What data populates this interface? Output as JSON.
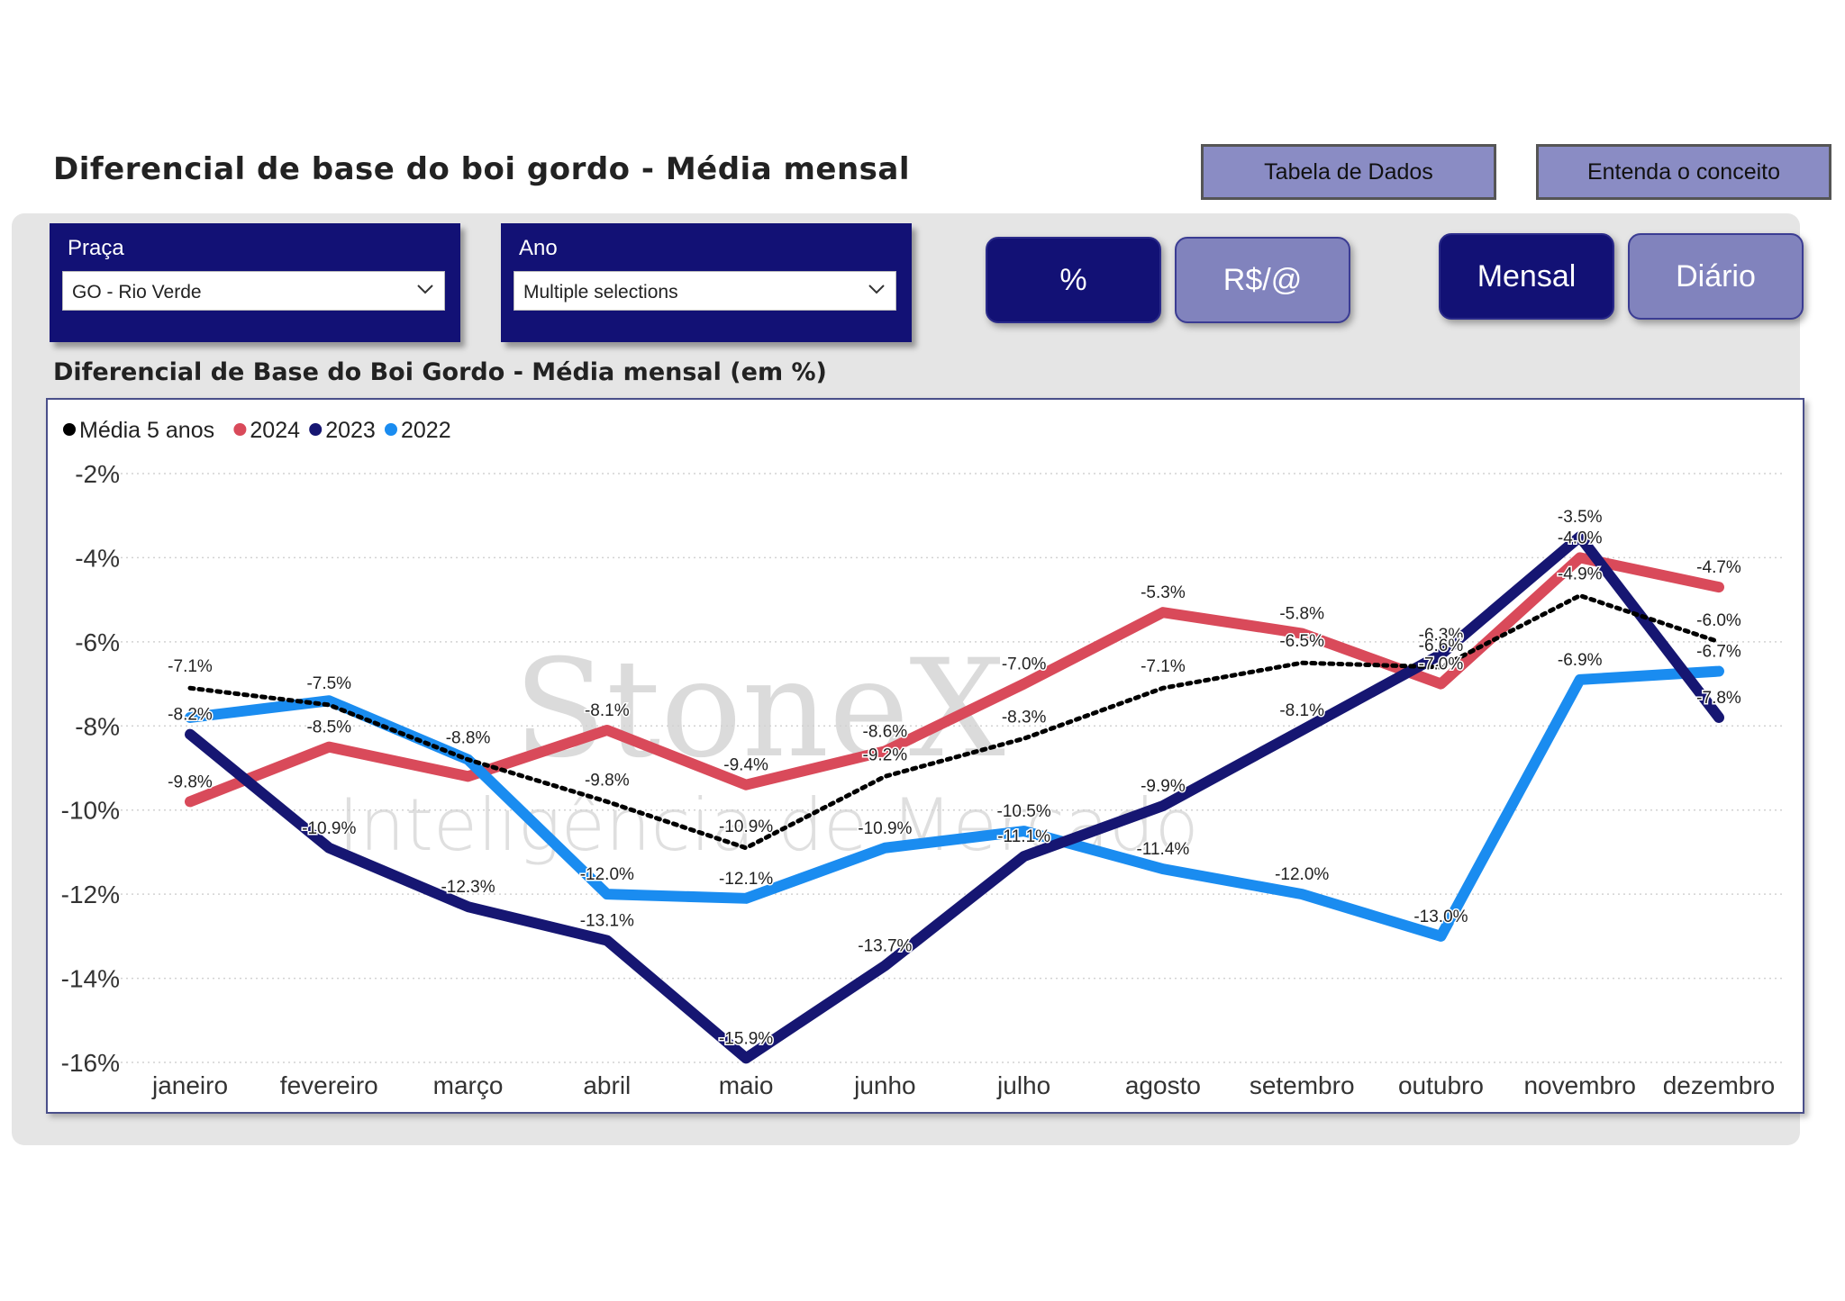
{
  "page": {
    "title": "Diferencial de base do boi gordo - Média mensal",
    "buttons": {
      "data_table": "Tabela de Dados",
      "concept": "Entenda o conceito"
    },
    "slicers": {
      "praca": {
        "label": "Praça",
        "value": "GO - Rio Verde"
      },
      "ano": {
        "label": "Ano",
        "value": "Multiple selections"
      }
    },
    "toggles": {
      "percent": "%",
      "reais": "R$/@",
      "mensal": "Mensal",
      "diario": "Diário"
    },
    "chart_title": "Diferencial de Base do Boi Gordo - Média mensal (em %)",
    "watermark": {
      "brand": "StoneX",
      "tagline": "Inteligência de Mercado"
    },
    "colors": {
      "navy": "#121175",
      "button_light": "#8a8cc4",
      "red_2024": "#d94a5a",
      "navy_2023": "#161672",
      "blue_2022": "#1a8cf0",
      "avg_black": "#000000"
    }
  },
  "chart_data": {
    "type": "line",
    "categories": [
      "janeiro",
      "fevereiro",
      "março",
      "abril",
      "maio",
      "junho",
      "julho",
      "agosto",
      "setembro",
      "outubro",
      "novembro",
      "dezembro"
    ],
    "ylim": [
      -16,
      -2
    ],
    "yticks": [
      -2,
      -4,
      -6,
      -8,
      -10,
      -12,
      -14,
      -16
    ],
    "ytick_labels": [
      "-2%",
      "-4%",
      "-6%",
      "-8%",
      "-10%",
      "-12%",
      "-14%",
      "-16%"
    ],
    "grid": true,
    "legend_position": "top-left",
    "series": [
      {
        "name": "Média 5 anos",
        "color": "#000000",
        "style": "dotted",
        "values": [
          -7.1,
          -7.5,
          -8.8,
          -9.8,
          -10.9,
          -9.2,
          -8.3,
          -7.1,
          -6.5,
          -6.6,
          -4.9,
          -6.0
        ],
        "labels": [
          "-7.1%",
          "-7.5%",
          "-8.8%",
          "-9.8%",
          "-10.9%",
          "-9.2%",
          "-8.3%",
          "-7.1%",
          "-6.5%",
          "-6.6%",
          "-4.9%",
          "-6.0%"
        ]
      },
      {
        "name": "2024",
        "color": "#d94a5a",
        "style": "solid",
        "values": [
          -9.8,
          -8.5,
          -9.2,
          -8.1,
          -9.4,
          -8.6,
          -7.0,
          -5.3,
          -5.8,
          -7.0,
          -4.0,
          -4.7
        ],
        "labels": [
          "-9.8%",
          "-8.5%",
          "",
          "-8.1%",
          "-9.4%",
          "-8.6%",
          "-7.0%",
          "-5.3%",
          "-5.8%",
          "-7.0%",
          "-4.0%",
          "-4.7%"
        ]
      },
      {
        "name": "2023",
        "color": "#161672",
        "style": "solid",
        "values": [
          -8.2,
          -10.9,
          -12.3,
          -13.1,
          -15.9,
          -13.7,
          -11.1,
          -9.9,
          -8.1,
          -6.3,
          -3.5,
          -7.8
        ],
        "labels": [
          "-8.2%",
          "-10.9%",
          "-12.3%",
          "-13.1%",
          "-15.9%",
          "-13.7%",
          "-11.1%",
          "-9.9%",
          "-8.1%",
          "-6.3%",
          "-3.5%",
          "-7.8%"
        ]
      },
      {
        "name": "2022",
        "color": "#1a8cf0",
        "style": "solid",
        "values": [
          -7.8,
          -7.4,
          -8.8,
          -12.0,
          -12.1,
          -10.9,
          -10.5,
          -11.4,
          -12.0,
          -13.0,
          -6.9,
          -6.7
        ],
        "labels": [
          "",
          "",
          "",
          "-12.0%",
          "-12.1%",
          "-10.9%",
          "-10.5%",
          "-11.4%",
          "-12.0%",
          "-13.0%",
          "-6.9%",
          "-6.7%"
        ]
      }
    ]
  }
}
